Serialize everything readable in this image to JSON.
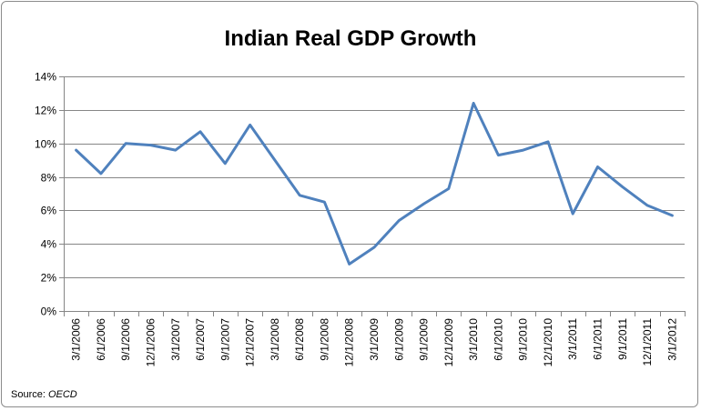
{
  "chart_data": {
    "type": "line",
    "title": "Indian Real GDP Growth",
    "xlabel": "",
    "ylabel": "",
    "categories": [
      "3/1/2006",
      "6/1/2006",
      "9/1/2006",
      "12/1/2006",
      "3/1/2007",
      "6/1/2007",
      "9/1/2007",
      "12/1/2007",
      "3/1/2008",
      "6/1/2008",
      "9/1/2008",
      "12/1/2008",
      "3/1/2009",
      "6/1/2009",
      "9/1/2009",
      "12/1/2009",
      "3/1/2010",
      "6/1/2010",
      "9/1/2010",
      "12/1/2010",
      "3/1/2011",
      "6/1/2011",
      "9/1/2011",
      "12/1/2011",
      "3/1/2012"
    ],
    "series": [
      {
        "values": [
          9.6,
          8.2,
          10.0,
          9.9,
          9.6,
          10.7,
          8.8,
          11.1,
          9.0,
          6.9,
          6.5,
          2.8,
          3.8,
          5.4,
          6.4,
          7.3,
          12.4,
          9.3,
          9.6,
          10.1,
          5.8,
          8.6,
          7.4,
          6.3,
          5.7
        ],
        "color": "#4f81bd"
      }
    ],
    "ylim": [
      0,
      14
    ],
    "yticks": [
      0,
      2,
      4,
      6,
      8,
      10,
      12,
      14
    ],
    "ytick_labels": [
      "0%",
      "2%",
      "4%",
      "6%",
      "8%",
      "10%",
      "12%",
      "14%"
    ],
    "grid": true,
    "legend": "none"
  },
  "source": {
    "prefix": "Source: ",
    "name": "OECD"
  }
}
